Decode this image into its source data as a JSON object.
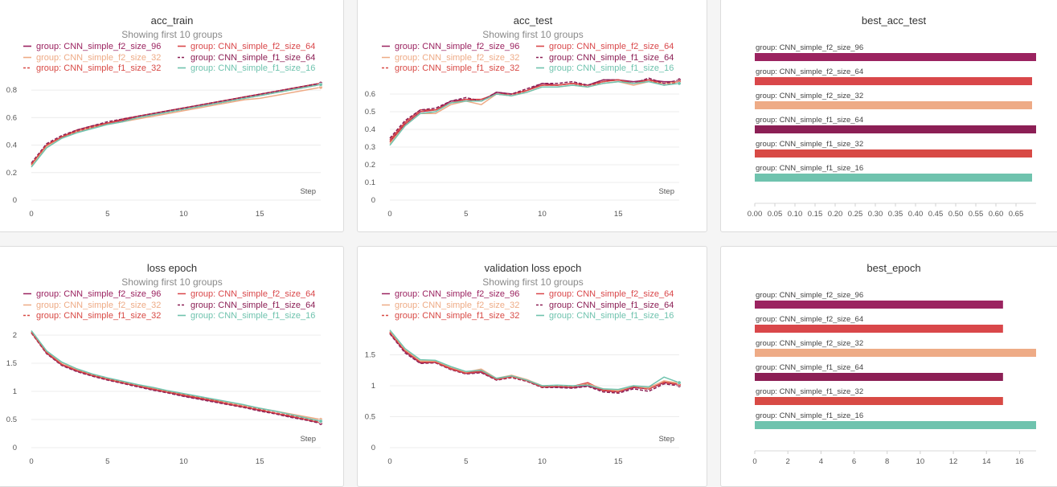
{
  "colors": {
    "f2_96": "#9b2360",
    "f2_64": "#d9474a",
    "f2_32": "#eeab86",
    "f1_64": "#8c1f55",
    "f1_32": "#d84a45",
    "f1_16": "#6fc3ae"
  },
  "legend": [
    {
      "key": "f2_96",
      "label": "group: CNN_simple_f2_size_96",
      "dash": false
    },
    {
      "key": "f2_64",
      "label": "group: CNN_simple_f2_size_64",
      "dash": false
    },
    {
      "key": "f2_32",
      "label": "group: CNN_simple_f2_size_32",
      "dash": false
    },
    {
      "key": "f1_64",
      "label": "group: CNN_simple_f1_size_64",
      "dash": true
    },
    {
      "key": "f1_32",
      "label": "group: CNN_simple_f1_size_32",
      "dash": true
    },
    {
      "key": "f1_16",
      "label": "group: CNN_simple_f1_size_16",
      "dash": false
    }
  ],
  "subtitle": "Showing first 10 groups",
  "step_label": "Step",
  "chart_data": [
    {
      "id": "acc_train",
      "type": "line",
      "title": "acc_train",
      "xlim": [
        0,
        19
      ],
      "ylim": [
        0,
        0.9
      ],
      "yticks": [
        0,
        0.2,
        0.4,
        0.6,
        0.8
      ],
      "xticks": [
        0,
        5,
        10,
        15
      ],
      "x": [
        0,
        1,
        2,
        3,
        4,
        5,
        6,
        7,
        8,
        9,
        10,
        11,
        12,
        13,
        14,
        15,
        16,
        17,
        18,
        19
      ],
      "series": [
        {
          "key": "f2_96",
          "values": [
            0.26,
            0.4,
            0.46,
            0.5,
            0.53,
            0.56,
            0.58,
            0.61,
            0.63,
            0.65,
            0.67,
            0.69,
            0.71,
            0.73,
            0.75,
            0.77,
            0.79,
            0.81,
            0.83,
            0.85
          ]
        },
        {
          "key": "f2_64",
          "values": [
            0.26,
            0.4,
            0.46,
            0.51,
            0.54,
            0.56,
            0.59,
            0.61,
            0.63,
            0.65,
            0.67,
            0.69,
            0.71,
            0.73,
            0.75,
            0.77,
            0.79,
            0.81,
            0.83,
            0.85
          ]
        },
        {
          "key": "f2_32",
          "values": [
            0.25,
            0.39,
            0.45,
            0.5,
            0.53,
            0.55,
            0.57,
            0.59,
            0.61,
            0.63,
            0.65,
            0.67,
            0.69,
            0.71,
            0.73,
            0.74,
            0.76,
            0.78,
            0.8,
            0.82
          ]
        },
        {
          "key": "f1_64",
          "values": [
            0.27,
            0.41,
            0.47,
            0.51,
            0.54,
            0.57,
            0.59,
            0.61,
            0.63,
            0.65,
            0.67,
            0.69,
            0.71,
            0.73,
            0.75,
            0.77,
            0.79,
            0.81,
            0.83,
            0.85
          ]
        },
        {
          "key": "f1_32",
          "values": [
            0.26,
            0.4,
            0.46,
            0.5,
            0.53,
            0.56,
            0.58,
            0.6,
            0.62,
            0.64,
            0.66,
            0.68,
            0.7,
            0.72,
            0.74,
            0.76,
            0.78,
            0.8,
            0.82,
            0.84
          ]
        },
        {
          "key": "f1_16",
          "values": [
            0.24,
            0.38,
            0.45,
            0.49,
            0.52,
            0.55,
            0.57,
            0.6,
            0.62,
            0.64,
            0.66,
            0.68,
            0.7,
            0.72,
            0.74,
            0.76,
            0.78,
            0.8,
            0.82,
            0.84
          ]
        }
      ]
    },
    {
      "id": "acc_test",
      "type": "line",
      "title": "acc_test",
      "xlim": [
        0,
        19
      ],
      "ylim": [
        0,
        0.7
      ],
      "yticks": [
        0,
        0.1,
        0.2,
        0.3,
        0.4,
        0.5,
        0.6
      ],
      "xticks": [
        0,
        5,
        10,
        15
      ],
      "x": [
        0,
        1,
        2,
        3,
        4,
        5,
        6,
        7,
        8,
        9,
        10,
        11,
        12,
        13,
        14,
        15,
        16,
        17,
        18,
        19
      ],
      "series": [
        {
          "key": "f2_96",
          "values": [
            0.33,
            0.43,
            0.5,
            0.51,
            0.56,
            0.57,
            0.56,
            0.61,
            0.6,
            0.62,
            0.66,
            0.65,
            0.66,
            0.65,
            0.68,
            0.68,
            0.67,
            0.68,
            0.67,
            0.67
          ]
        },
        {
          "key": "f2_64",
          "values": [
            0.34,
            0.44,
            0.51,
            0.51,
            0.55,
            0.57,
            0.57,
            0.6,
            0.6,
            0.62,
            0.65,
            0.65,
            0.66,
            0.65,
            0.67,
            0.68,
            0.66,
            0.68,
            0.66,
            0.67
          ]
        },
        {
          "key": "f2_32",
          "values": [
            0.32,
            0.42,
            0.49,
            0.49,
            0.54,
            0.56,
            0.54,
            0.6,
            0.59,
            0.61,
            0.64,
            0.64,
            0.65,
            0.64,
            0.66,
            0.67,
            0.65,
            0.67,
            0.66,
            0.67
          ]
        },
        {
          "key": "f1_64",
          "values": [
            0.35,
            0.45,
            0.51,
            0.52,
            0.56,
            0.58,
            0.56,
            0.61,
            0.6,
            0.63,
            0.66,
            0.66,
            0.67,
            0.65,
            0.68,
            0.68,
            0.66,
            0.69,
            0.66,
            0.68
          ]
        },
        {
          "key": "f1_32",
          "values": [
            0.33,
            0.43,
            0.5,
            0.51,
            0.55,
            0.57,
            0.56,
            0.6,
            0.59,
            0.62,
            0.65,
            0.65,
            0.66,
            0.64,
            0.67,
            0.68,
            0.66,
            0.68,
            0.65,
            0.67
          ]
        },
        {
          "key": "f1_16",
          "values": [
            0.31,
            0.42,
            0.49,
            0.5,
            0.55,
            0.56,
            0.56,
            0.6,
            0.59,
            0.61,
            0.64,
            0.64,
            0.65,
            0.64,
            0.66,
            0.67,
            0.66,
            0.67,
            0.65,
            0.66
          ]
        }
      ]
    },
    {
      "id": "best_acc_test",
      "type": "bar",
      "title": "best_acc_test",
      "horizontal": true,
      "xlim": [
        0,
        0.7
      ],
      "xticks": [
        0.0,
        0.05,
        0.1,
        0.15,
        0.2,
        0.25,
        0.3,
        0.35,
        0.4,
        0.45,
        0.5,
        0.55,
        0.6,
        0.65
      ],
      "xtick_labels": [
        "0.00",
        "0.05",
        "0.10",
        "0.15",
        "0.20",
        "0.25",
        "0.30",
        "0.35",
        "0.40",
        "0.45",
        "0.50",
        "0.55",
        "0.60",
        "0.65"
      ],
      "bars": [
        {
          "key": "f2_96",
          "label": "group: CNN_simple_f2_size_96",
          "value": 0.7
        },
        {
          "key": "f2_64",
          "label": "group: CNN_simple_f2_size_64",
          "value": 0.69
        },
        {
          "key": "f2_32",
          "label": "group: CNN_simple_f2_size_32",
          "value": 0.69
        },
        {
          "key": "f1_64",
          "label": "group: CNN_simple_f1_size_64",
          "value": 0.7
        },
        {
          "key": "f1_32",
          "label": "group: CNN_simple_f1_size_32",
          "value": 0.69
        },
        {
          "key": "f1_16",
          "label": "group: CNN_simple_f1_size_16",
          "value": 0.69
        }
      ]
    },
    {
      "id": "loss_epoch",
      "type": "line",
      "title": "loss epoch",
      "xlim": [
        0,
        19
      ],
      "ylim": [
        0,
        2.2
      ],
      "yticks": [
        0,
        0.5,
        1,
        1.5,
        2
      ],
      "ytick_labels": [
        "0",
        "0.5",
        "1",
        "1.5",
        "2"
      ],
      "xticks": [
        0,
        5,
        10,
        15
      ],
      "x": [
        0,
        1,
        2,
        3,
        4,
        5,
        6,
        7,
        8,
        9,
        10,
        11,
        12,
        13,
        14,
        15,
        16,
        17,
        18,
        19
      ],
      "series": [
        {
          "key": "f2_96",
          "values": [
            2.05,
            1.68,
            1.47,
            1.36,
            1.28,
            1.21,
            1.15,
            1.09,
            1.03,
            0.98,
            0.92,
            0.87,
            0.82,
            0.77,
            0.72,
            0.66,
            0.61,
            0.55,
            0.5,
            0.44
          ]
        },
        {
          "key": "f2_64",
          "values": [
            2.05,
            1.69,
            1.48,
            1.37,
            1.28,
            1.21,
            1.15,
            1.1,
            1.04,
            0.98,
            0.93,
            0.88,
            0.83,
            0.77,
            0.72,
            0.67,
            0.61,
            0.56,
            0.5,
            0.44
          ]
        },
        {
          "key": "f2_32",
          "values": [
            2.07,
            1.71,
            1.51,
            1.39,
            1.3,
            1.23,
            1.17,
            1.11,
            1.06,
            1.0,
            0.95,
            0.9,
            0.85,
            0.8,
            0.75,
            0.7,
            0.65,
            0.6,
            0.55,
            0.5
          ]
        },
        {
          "key": "f1_64",
          "values": [
            2.04,
            1.67,
            1.46,
            1.35,
            1.27,
            1.2,
            1.14,
            1.08,
            1.02,
            0.97,
            0.91,
            0.86,
            0.81,
            0.76,
            0.71,
            0.65,
            0.6,
            0.54,
            0.49,
            0.43
          ]
        },
        {
          "key": "f1_32",
          "values": [
            2.05,
            1.69,
            1.48,
            1.37,
            1.29,
            1.22,
            1.16,
            1.1,
            1.04,
            0.99,
            0.94,
            0.89,
            0.84,
            0.78,
            0.73,
            0.68,
            0.62,
            0.57,
            0.51,
            0.46
          ]
        },
        {
          "key": "f1_16",
          "values": [
            2.08,
            1.72,
            1.52,
            1.4,
            1.31,
            1.24,
            1.18,
            1.12,
            1.07,
            1.01,
            0.96,
            0.91,
            0.86,
            0.81,
            0.76,
            0.7,
            0.65,
            0.59,
            0.53,
            0.47
          ]
        }
      ]
    },
    {
      "id": "validation_loss_epoch",
      "type": "line",
      "title": "validation loss epoch",
      "xlim": [
        0,
        19
      ],
      "ylim": [
        0,
        2.0
      ],
      "yticks": [
        0,
        0.5,
        1,
        1.5
      ],
      "ytick_labels": [
        "0",
        "0.5",
        "1",
        "1.5"
      ],
      "xticks": [
        0,
        5,
        10,
        15
      ],
      "x": [
        0,
        1,
        2,
        3,
        4,
        5,
        6,
        7,
        8,
        9,
        10,
        11,
        12,
        13,
        14,
        15,
        16,
        17,
        18,
        19
      ],
      "series": [
        {
          "key": "f2_96",
          "values": [
            1.85,
            1.55,
            1.37,
            1.38,
            1.27,
            1.2,
            1.22,
            1.1,
            1.15,
            1.08,
            0.98,
            0.98,
            0.97,
            1.0,
            0.92,
            0.9,
            0.97,
            0.95,
            1.05,
            1.02
          ]
        },
        {
          "key": "f2_64",
          "values": [
            1.87,
            1.57,
            1.39,
            1.39,
            1.28,
            1.21,
            1.24,
            1.11,
            1.15,
            1.08,
            0.99,
            1.0,
            0.99,
            1.05,
            0.93,
            0.92,
            0.99,
            0.97,
            1.07,
            1.03
          ]
        },
        {
          "key": "f2_32",
          "values": [
            1.88,
            1.58,
            1.4,
            1.4,
            1.3,
            1.22,
            1.27,
            1.12,
            1.17,
            1.1,
            1.0,
            1.0,
            0.99,
            1.03,
            0.95,
            0.92,
            1.0,
            0.96,
            1.08,
            1.04
          ]
        },
        {
          "key": "f1_64",
          "values": [
            1.84,
            1.53,
            1.36,
            1.37,
            1.26,
            1.19,
            1.21,
            1.09,
            1.13,
            1.07,
            0.97,
            0.97,
            0.96,
            0.99,
            0.9,
            0.88,
            0.95,
            0.91,
            1.03,
            1.0
          ]
        },
        {
          "key": "f1_32",
          "values": [
            1.86,
            1.56,
            1.38,
            1.38,
            1.27,
            1.2,
            1.23,
            1.1,
            1.14,
            1.08,
            0.98,
            0.99,
            0.98,
            1.02,
            0.92,
            0.9,
            0.98,
            0.94,
            1.05,
            1.02
          ]
        },
        {
          "key": "f1_16",
          "values": [
            1.9,
            1.6,
            1.42,
            1.41,
            1.31,
            1.23,
            1.25,
            1.12,
            1.16,
            1.09,
            1.0,
            1.01,
            1.0,
            1.01,
            0.95,
            0.94,
            1.0,
            0.98,
            1.14,
            1.05
          ]
        }
      ]
    },
    {
      "id": "best_epoch",
      "type": "bar",
      "title": "best_epoch",
      "horizontal": true,
      "xlim": [
        0,
        17
      ],
      "xticks": [
        0,
        2,
        4,
        6,
        8,
        10,
        12,
        14,
        16
      ],
      "xtick_labels": [
        "0",
        "2",
        "4",
        "6",
        "8",
        "10",
        "12",
        "14",
        "16"
      ],
      "bars": [
        {
          "key": "f2_96",
          "label": "group: CNN_simple_f2_size_96",
          "value": 15
        },
        {
          "key": "f2_64",
          "label": "group: CNN_simple_f2_size_64",
          "value": 15
        },
        {
          "key": "f2_32",
          "label": "group: CNN_simple_f2_size_32",
          "value": 17
        },
        {
          "key": "f1_64",
          "label": "group: CNN_simple_f1_size_64",
          "value": 15
        },
        {
          "key": "f1_32",
          "label": "group: CNN_simple_f1_size_32",
          "value": 15
        },
        {
          "key": "f1_16",
          "label": "group: CNN_simple_f1_size_16",
          "value": 17
        }
      ]
    }
  ]
}
